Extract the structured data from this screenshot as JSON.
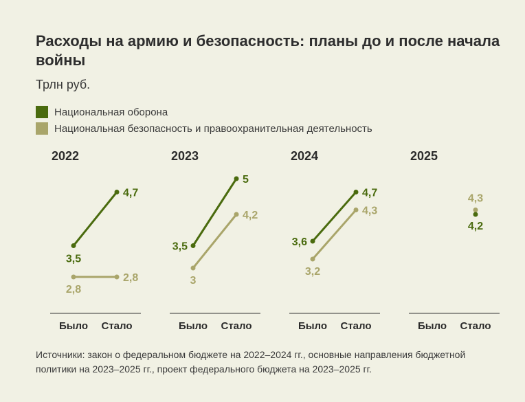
{
  "title": "Расходы на армию и безопасность: планы до и после начала войны",
  "subtitle": "Трлн руб.",
  "legend": {
    "defense": "Национальная оборона",
    "security": "Национальная безопасность и правоохранительная деятельность"
  },
  "colors": {
    "defense": "#4a6b0e",
    "security": "#a9a56a",
    "background": "#f1f1e4"
  },
  "source": "Источники: закон о федеральном бюджете на 2022–2024 гг., основные направления бюджетной политики на 2023–2025 гг., проект федерального бюджета на 2023–2025 гг.",
  "chart_data": {
    "type": "line",
    "categories": [
      "Было",
      "Стало"
    ],
    "panels": [
      {
        "year": "2022",
        "series": [
          {
            "name": "Национальная оборона",
            "values": [
              3.5,
              4.7
            ],
            "labels": [
              "3,5",
              "4,7"
            ]
          },
          {
            "name": "Национальная безопасность и правоохранительная деятельность",
            "values": [
              2.8,
              2.8
            ],
            "labels": [
              "2,8",
              "2,8"
            ]
          }
        ]
      },
      {
        "year": "2023",
        "series": [
          {
            "name": "Национальная оборона",
            "values": [
              3.5,
              5.0
            ],
            "labels": [
              "3,5",
              "5"
            ]
          },
          {
            "name": "Национальная безопасность и правоохранительная деятельность",
            "values": [
              3.0,
              4.2
            ],
            "labels": [
              "3",
              "4,2"
            ]
          }
        ]
      },
      {
        "year": "2024",
        "series": [
          {
            "name": "Национальная оборона",
            "values": [
              3.6,
              4.7
            ],
            "labels": [
              "3,6",
              "4,7"
            ]
          },
          {
            "name": "Национальная безопасность и правоохранительная деятельность",
            "values": [
              3.2,
              4.3
            ],
            "labels": [
              "3,2",
              "4,3"
            ]
          }
        ]
      },
      {
        "year": "2025",
        "series": [
          {
            "name": "Национальная оборона",
            "values": [
              null,
              4.2
            ],
            "labels": [
              "",
              "4,2"
            ]
          },
          {
            "name": "Национальная безопасность и правоохранительная деятельность",
            "values": [
              null,
              4.3
            ],
            "labels": [
              "",
              "4,3"
            ]
          }
        ]
      }
    ]
  }
}
